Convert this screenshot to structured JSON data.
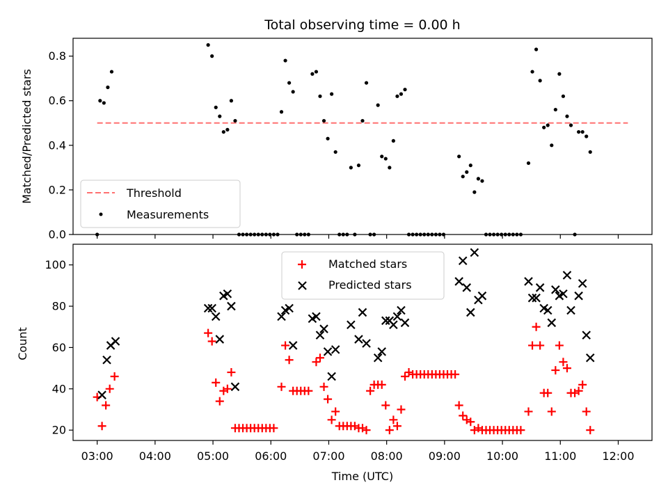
{
  "chart_data": [
    {
      "type": "scatter",
      "title": "Total observing time = 0.00 h",
      "ylabel": "Matched/Predicted stars",
      "ylim": [
        0,
        0.88
      ],
      "yticks": [
        "0.0",
        "0.2",
        "0.4",
        "0.6",
        "0.8"
      ],
      "legend_position": "lower-left",
      "threshold": {
        "name": "Threshold",
        "value": 0.5,
        "x_range": [
          "03:00",
          "12:10"
        ],
        "color": "#ff7070"
      },
      "series": [
        {
          "name": "Measurements",
          "color": "#000000",
          "points": [
            [
              "03:00",
              0.0
            ],
            [
              "03:03",
              0.6
            ],
            [
              "03:07",
              0.59
            ],
            [
              "03:11",
              0.66
            ],
            [
              "03:15",
              0.73
            ],
            [
              "04:55",
              0.85
            ],
            [
              "04:59",
              0.8
            ],
            [
              "05:03",
              0.57
            ],
            [
              "05:07",
              0.53
            ],
            [
              "05:11",
              0.46
            ],
            [
              "05:15",
              0.47
            ],
            [
              "05:19",
              0.6
            ],
            [
              "05:23",
              0.51
            ],
            [
              "05:27",
              0.0
            ],
            [
              "05:31",
              0.0
            ],
            [
              "05:35",
              0.0
            ],
            [
              "05:39",
              0.0
            ],
            [
              "05:43",
              0.0
            ],
            [
              "05:47",
              0.0
            ],
            [
              "05:51",
              0.0
            ],
            [
              "05:55",
              0.0
            ],
            [
              "05:59",
              0.0
            ],
            [
              "06:03",
              0.0
            ],
            [
              "06:07",
              0.0
            ],
            [
              "06:11",
              0.55
            ],
            [
              "06:15",
              0.78
            ],
            [
              "06:19",
              0.68
            ],
            [
              "06:23",
              0.64
            ],
            [
              "06:27",
              0.0
            ],
            [
              "06:31",
              0.0
            ],
            [
              "06:35",
              0.0
            ],
            [
              "06:39",
              0.0
            ],
            [
              "06:43",
              0.72
            ],
            [
              "06:47",
              0.73
            ],
            [
              "06:51",
              0.62
            ],
            [
              "06:55",
              0.51
            ],
            [
              "06:59",
              0.43
            ],
            [
              "07:03",
              0.63
            ],
            [
              "07:07",
              0.37
            ],
            [
              "07:11",
              0.0
            ],
            [
              "07:15",
              0.0
            ],
            [
              "07:19",
              0.0
            ],
            [
              "07:23",
              0.3
            ],
            [
              "07:27",
              0.0
            ],
            [
              "07:31",
              0.31
            ],
            [
              "07:35",
              0.51
            ],
            [
              "07:39",
              0.68
            ],
            [
              "07:43",
              0.0
            ],
            [
              "07:47",
              0.0
            ],
            [
              "07:51",
              0.58
            ],
            [
              "07:55",
              0.35
            ],
            [
              "07:59",
              0.34
            ],
            [
              "08:03",
              0.3
            ],
            [
              "08:07",
              0.42
            ],
            [
              "08:11",
              0.62
            ],
            [
              "08:15",
              0.63
            ],
            [
              "08:19",
              0.65
            ],
            [
              "08:23",
              0.0
            ],
            [
              "08:27",
              0.0
            ],
            [
              "08:31",
              0.0
            ],
            [
              "08:35",
              0.0
            ],
            [
              "08:39",
              0.0
            ],
            [
              "08:43",
              0.0
            ],
            [
              "08:47",
              0.0
            ],
            [
              "08:51",
              0.0
            ],
            [
              "08:55",
              0.0
            ],
            [
              "08:59",
              0.0
            ],
            [
              "09:15",
              0.35
            ],
            [
              "09:19",
              0.26
            ],
            [
              "09:23",
              0.28
            ],
            [
              "09:27",
              0.31
            ],
            [
              "09:31",
              0.19
            ],
            [
              "09:35",
              0.25
            ],
            [
              "09:39",
              0.24
            ],
            [
              "09:43",
              0.0
            ],
            [
              "09:47",
              0.0
            ],
            [
              "09:51",
              0.0
            ],
            [
              "09:55",
              0.0
            ],
            [
              "09:59",
              0.0
            ],
            [
              "10:03",
              0.0
            ],
            [
              "10:07",
              0.0
            ],
            [
              "10:11",
              0.0
            ],
            [
              "10:15",
              0.0
            ],
            [
              "10:19",
              0.0
            ],
            [
              "10:27",
              0.32
            ],
            [
              "10:31",
              0.73
            ],
            [
              "10:35",
              0.83
            ],
            [
              "10:39",
              0.69
            ],
            [
              "10:43",
              0.48
            ],
            [
              "10:47",
              0.49
            ],
            [
              "10:51",
              0.4
            ],
            [
              "10:55",
              0.56
            ],
            [
              "10:59",
              0.72
            ],
            [
              "11:03",
              0.62
            ],
            [
              "11:07",
              0.53
            ],
            [
              "11:11",
              0.49
            ],
            [
              "11:15",
              0.0
            ],
            [
              "11:19",
              0.46
            ],
            [
              "11:23",
              0.46
            ],
            [
              "11:27",
              0.44
            ],
            [
              "11:31",
              0.37
            ]
          ]
        }
      ]
    },
    {
      "type": "scatter",
      "xlabel": "Time (UTC)",
      "ylabel": "Count",
      "ylim": [
        15,
        110
      ],
      "yticks": [
        "20",
        "40",
        "60",
        "80",
        "100"
      ],
      "xticks": [
        "03:00",
        "04:00",
        "05:00",
        "06:00",
        "07:00",
        "08:00",
        "09:00",
        "10:00",
        "11:00",
        "12:00"
      ],
      "legend_position": "upper-center",
      "series": [
        {
          "name": "Matched stars",
          "color": "#ff0000",
          "marker": "plus",
          "points": [
            [
              "03:00",
              36
            ],
            [
              "03:05",
              22
            ],
            [
              "03:09",
              32
            ],
            [
              "03:13",
              40
            ],
            [
              "03:18",
              46
            ],
            [
              "04:55",
              67
            ],
            [
              "04:59",
              63
            ],
            [
              "05:03",
              43
            ],
            [
              "05:07",
              34
            ],
            [
              "05:11",
              39
            ],
            [
              "05:15",
              40
            ],
            [
              "05:19",
              48
            ],
            [
              "05:23",
              21
            ],
            [
              "05:27",
              21
            ],
            [
              "05:31",
              21
            ],
            [
              "05:35",
              21
            ],
            [
              "05:39",
              21
            ],
            [
              "05:43",
              21
            ],
            [
              "05:47",
              21
            ],
            [
              "05:51",
              21
            ],
            [
              "05:55",
              21
            ],
            [
              "05:59",
              21
            ],
            [
              "06:03",
              21
            ],
            [
              "06:11",
              41
            ],
            [
              "06:15",
              61
            ],
            [
              "06:19",
              54
            ],
            [
              "06:23",
              39
            ],
            [
              "06:27",
              39
            ],
            [
              "06:31",
              39
            ],
            [
              "06:35",
              39
            ],
            [
              "06:39",
              39
            ],
            [
              "06:47",
              53
            ],
            [
              "06:51",
              55
            ],
            [
              "06:55",
              41
            ],
            [
              "06:59",
              35
            ],
            [
              "07:03",
              25
            ],
            [
              "07:07",
              29
            ],
            [
              "07:11",
              22
            ],
            [
              "07:15",
              22
            ],
            [
              "07:19",
              22
            ],
            [
              "07:23",
              22
            ],
            [
              "07:27",
              22
            ],
            [
              "07:31",
              21
            ],
            [
              "07:35",
              21
            ],
            [
              "07:39",
              20
            ],
            [
              "07:43",
              39
            ],
            [
              "07:47",
              42
            ],
            [
              "07:51",
              42
            ],
            [
              "07:55",
              42
            ],
            [
              "07:59",
              32
            ],
            [
              "08:03",
              20
            ],
            [
              "08:07",
              25
            ],
            [
              "08:11",
              22
            ],
            [
              "08:15",
              30
            ],
            [
              "08:19",
              46
            ],
            [
              "08:23",
              48
            ],
            [
              "08:27",
              47
            ],
            [
              "08:31",
              47
            ],
            [
              "08:35",
              47
            ],
            [
              "08:39",
              47
            ],
            [
              "08:43",
              47
            ],
            [
              "08:47",
              47
            ],
            [
              "08:51",
              47
            ],
            [
              "08:55",
              47
            ],
            [
              "08:59",
              47
            ],
            [
              "09:03",
              47
            ],
            [
              "09:07",
              47
            ],
            [
              "09:11",
              47
            ],
            [
              "09:15",
              32
            ],
            [
              "09:19",
              27
            ],
            [
              "09:23",
              25
            ],
            [
              "09:27",
              24
            ],
            [
              "09:31",
              20
            ],
            [
              "09:35",
              21
            ],
            [
              "09:39",
              20
            ],
            [
              "09:43",
              20
            ],
            [
              "09:47",
              20
            ],
            [
              "09:51",
              20
            ],
            [
              "09:55",
              20
            ],
            [
              "09:59",
              20
            ],
            [
              "10:03",
              20
            ],
            [
              "10:07",
              20
            ],
            [
              "10:11",
              20
            ],
            [
              "10:15",
              20
            ],
            [
              "10:19",
              20
            ],
            [
              "10:27",
              29
            ],
            [
              "10:31",
              61
            ],
            [
              "10:35",
              70
            ],
            [
              "10:39",
              61
            ],
            [
              "10:43",
              38
            ],
            [
              "10:47",
              38
            ],
            [
              "10:51",
              29
            ],
            [
              "10:55",
              49
            ],
            [
              "10:59",
              61
            ],
            [
              "11:03",
              53
            ],
            [
              "11:07",
              50
            ],
            [
              "11:11",
              38
            ],
            [
              "11:15",
              38
            ],
            [
              "11:19",
              39
            ],
            [
              "11:23",
              42
            ],
            [
              "11:27",
              29
            ],
            [
              "11:31",
              20
            ]
          ]
        },
        {
          "name": "Predicted stars",
          "color": "#000000",
          "marker": "cross",
          "points": [
            [
              "03:05",
              37
            ],
            [
              "03:10",
              54
            ],
            [
              "03:14",
              61
            ],
            [
              "03:19",
              63
            ],
            [
              "04:55",
              79
            ],
            [
              "04:59",
              79
            ],
            [
              "05:03",
              75
            ],
            [
              "05:07",
              64
            ],
            [
              "05:11",
              85
            ],
            [
              "05:15",
              86
            ],
            [
              "05:19",
              80
            ],
            [
              "05:23",
              41
            ],
            [
              "06:11",
              75
            ],
            [
              "06:15",
              78
            ],
            [
              "06:19",
              79
            ],
            [
              "06:23",
              61
            ],
            [
              "06:43",
              74
            ],
            [
              "06:47",
              75
            ],
            [
              "06:51",
              66
            ],
            [
              "06:55",
              69
            ],
            [
              "06:59",
              58
            ],
            [
              "07:03",
              46
            ],
            [
              "07:07",
              59
            ],
            [
              "07:23",
              71
            ],
            [
              "07:31",
              64
            ],
            [
              "07:35",
              77
            ],
            [
              "07:39",
              62
            ],
            [
              "07:51",
              55
            ],
            [
              "07:55",
              58
            ],
            [
              "07:59",
              73
            ],
            [
              "08:03",
              73
            ],
            [
              "08:07",
              71
            ],
            [
              "08:11",
              75
            ],
            [
              "08:15",
              78
            ],
            [
              "08:19",
              72
            ],
            [
              "09:15",
              92
            ],
            [
              "09:19",
              102
            ],
            [
              "09:23",
              89
            ],
            [
              "09:27",
              77
            ],
            [
              "09:31",
              106
            ],
            [
              "09:35",
              83
            ],
            [
              "09:39",
              85
            ],
            [
              "10:27",
              92
            ],
            [
              "10:31",
              84
            ],
            [
              "10:35",
              84
            ],
            [
              "10:39",
              89
            ],
            [
              "10:43",
              79
            ],
            [
              "10:47",
              78
            ],
            [
              "10:51",
              72
            ],
            [
              "10:55",
              88
            ],
            [
              "10:59",
              85
            ],
            [
              "11:03",
              86
            ],
            [
              "11:07",
              95
            ],
            [
              "11:11",
              78
            ],
            [
              "11:19",
              85
            ],
            [
              "11:23",
              91
            ],
            [
              "11:27",
              66
            ],
            [
              "11:31",
              55
            ]
          ]
        }
      ]
    }
  ]
}
